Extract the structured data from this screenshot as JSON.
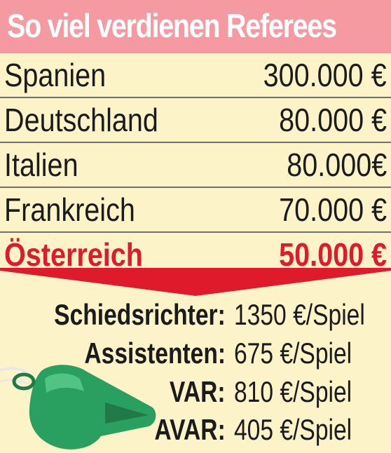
{
  "title": "So viel verdienen Referees",
  "salaries": [
    {
      "country": "Spanien",
      "amount": "300.000 €"
    },
    {
      "country": "Deutschland",
      "amount": "80.000 €"
    },
    {
      "country": "Italien",
      "amount": "80.000€"
    },
    {
      "country": "Frankreich",
      "amount": "70.000 €"
    },
    {
      "country": "Österreich",
      "amount": "50.000 €"
    }
  ],
  "fees": [
    {
      "role": "Schiedsrichter:",
      "amount": "1350 €/Spiel"
    },
    {
      "role": "Assistenten:",
      "amount": "675 €/Spiel"
    },
    {
      "role": "VAR:",
      "amount": "810 €/Spiel"
    },
    {
      "role": "AVAR:",
      "amount": "405 €/Spiel"
    }
  ],
  "colors": {
    "background": "#fdf3c9",
    "title_bar": "#f49aa0",
    "highlight": "#de1a2b",
    "whistle": "#29a05f"
  },
  "icons": {
    "whistle": "whistle-icon"
  }
}
